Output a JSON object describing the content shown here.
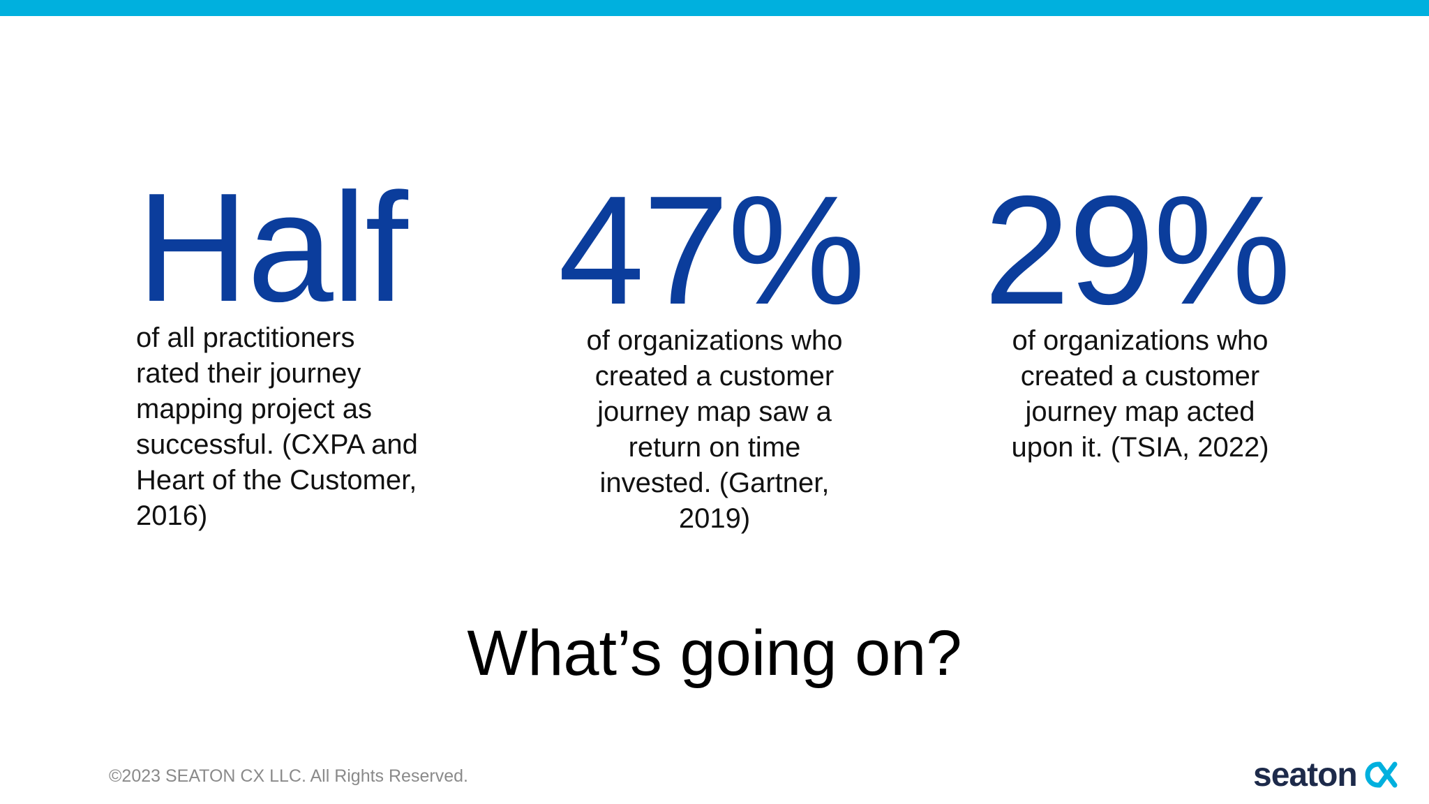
{
  "colors": {
    "accent_bar": "#00b0de",
    "stat_number": "#0b3d9c",
    "body_text": "#111111",
    "footer_text": "#8a8a8a",
    "logo_text": "#1d2a4a",
    "logo_mark": "#00b0de"
  },
  "stats": [
    {
      "number": "Half",
      "text": "of all practitioners\nrated their journey\nmapping project as\nsuccessful. (CXPA and\nHeart of the Customer,\n2016)"
    },
    {
      "number": "47%",
      "text": "of organizations who\ncreated a customer\njourney map saw a\nreturn on time\ninvested. (Gartner,\n2019)"
    },
    {
      "number": "29%",
      "text": "of organizations who\ncreated a customer\njourney map acted\nupon it. (TSIA, 2022)"
    }
  ],
  "question": "What’s going on?",
  "footer": {
    "copyright": "©2023 SEATON CX LLC. All Rights Reserved."
  },
  "logo": {
    "word": "seaton",
    "mark_icon": "cx-logo-icon"
  }
}
